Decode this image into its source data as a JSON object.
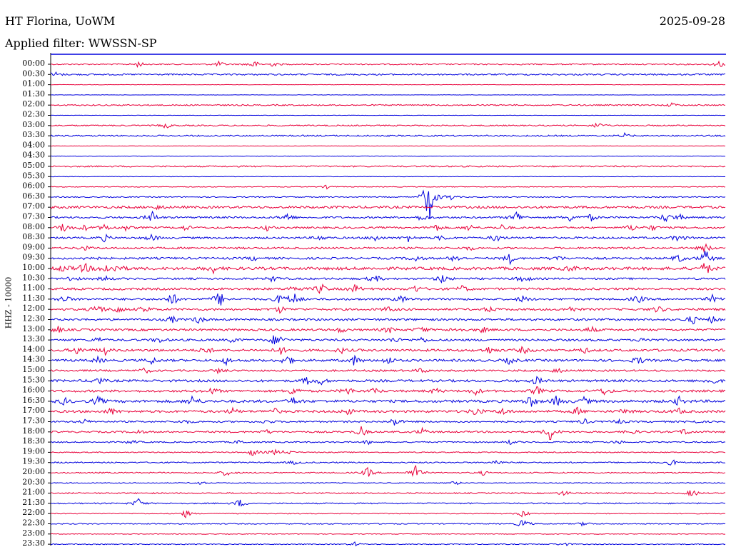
{
  "header": {
    "station": "HT Florina, UoWM",
    "date": "2025-09-28",
    "filter": "Applied filter: WWSSN-SP"
  },
  "colors": {
    "blue_trace": "#0000dd",
    "red_trace": "#e8003a",
    "axis": "#000000"
  },
  "chart_data": {
    "type": "line",
    "title": "HT Florina, UoWM",
    "subtitle": "Applied filter: WWSSN-SP",
    "ylabel": "HHZ - 10000",
    "xlabel": "",
    "grid": false,
    "row_interval_minutes": 30,
    "row_labels": [
      "00:00",
      "00:30",
      "01:00",
      "01:30",
      "02:00",
      "02:30",
      "03:00",
      "03:30",
      "04:00",
      "04:30",
      "05:00",
      "05:30",
      "06:00",
      "06:30",
      "07:00",
      "07:30",
      "08:00",
      "08:30",
      "09:00",
      "09:30",
      "10:00",
      "10:30",
      "11:00",
      "11:30",
      "12:00",
      "12:30",
      "13:00",
      "13:30",
      "14:00",
      "14:30",
      "15:00",
      "15:30",
      "16:00",
      "16:30",
      "17:00",
      "17:30",
      "18:00",
      "18:30",
      "19:00",
      "19:30",
      "20:00",
      "20:30",
      "21:00",
      "21:30",
      "22:00",
      "22:30",
      "23:00",
      "23:30"
    ],
    "trace_colors": [
      "#0000dd",
      "#e8003a"
    ],
    "series": [
      {
        "noise": 1.0,
        "events": [
          [
            0.13,
            4
          ],
          [
            0.25,
            4
          ],
          [
            0.3,
            6
          ],
          [
            0.33,
            3
          ],
          [
            0.99,
            5
          ]
        ]
      },
      {
        "noise": 1.2,
        "events": [
          [
            0.005,
            5
          ]
        ]
      },
      {
        "noise": 0.3,
        "events": []
      },
      {
        "noise": 0.3,
        "events": []
      },
      {
        "noise": 1.0,
        "events": [
          [
            0.92,
            3
          ]
        ]
      },
      {
        "noise": 0.3,
        "events": []
      },
      {
        "noise": 1.0,
        "events": [
          [
            0.17,
            4
          ],
          [
            0.81,
            5
          ]
        ]
      },
      {
        "noise": 1.1,
        "events": [
          [
            0.85,
            3
          ]
        ]
      },
      {
        "noise": 0.3,
        "events": []
      },
      {
        "noise": 0.4,
        "events": []
      },
      {
        "noise": 1.1,
        "events": []
      },
      {
        "noise": 0.4,
        "events": []
      },
      {
        "noise": 0.6,
        "events": [
          [
            0.41,
            3
          ]
        ]
      },
      {
        "noise": 0.8,
        "events": [
          [
            0.56,
            40
          ],
          [
            0.59,
            6
          ]
        ]
      },
      {
        "noise": 1.8,
        "events": [
          [
            0.16,
            3
          ]
        ]
      },
      {
        "noise": 1.4,
        "events": [
          [
            0.15,
            9
          ],
          [
            0.35,
            7
          ],
          [
            0.55,
            5
          ],
          [
            0.69,
            10
          ],
          [
            0.77,
            6
          ],
          [
            0.8,
            5
          ],
          [
            0.91,
            7
          ],
          [
            0.93,
            5
          ]
        ]
      },
      {
        "noise": 1.4,
        "events": [
          [
            0.02,
            8
          ],
          [
            0.05,
            4
          ],
          [
            0.08,
            5
          ],
          [
            0.11,
            4
          ],
          [
            0.2,
            4
          ],
          [
            0.32,
            4
          ],
          [
            0.57,
            6
          ],
          [
            0.62,
            5
          ],
          [
            0.67,
            5
          ],
          [
            0.86,
            5
          ],
          [
            0.89,
            4
          ]
        ]
      },
      {
        "noise": 1.5,
        "events": [
          [
            0.08,
            5
          ],
          [
            0.15,
            5
          ],
          [
            0.4,
            4
          ],
          [
            0.48,
            5
          ],
          [
            0.53,
            5
          ],
          [
            0.58,
            4
          ],
          [
            0.66,
            6
          ],
          [
            0.93,
            6
          ]
        ]
      },
      {
        "noise": 1.5,
        "events": [
          [
            0.05,
            3
          ],
          [
            0.62,
            3
          ],
          [
            0.97,
            6
          ]
        ]
      },
      {
        "noise": 1.6,
        "events": [
          [
            0.06,
            5
          ],
          [
            0.3,
            3
          ],
          [
            0.54,
            5
          ],
          [
            0.6,
            6
          ],
          [
            0.68,
            7
          ],
          [
            0.75,
            4
          ],
          [
            0.93,
            6
          ],
          [
            0.97,
            12
          ]
        ]
      },
      {
        "noise": 2.2,
        "events": [
          [
            0.02,
            6
          ],
          [
            0.05,
            8
          ],
          [
            0.08,
            7
          ],
          [
            0.1,
            6
          ],
          [
            0.24,
            6
          ],
          [
            0.77,
            4
          ],
          [
            0.97,
            10
          ]
        ]
      },
      {
        "noise": 1.5,
        "events": [
          [
            0.03,
            4
          ],
          [
            0.08,
            4
          ],
          [
            0.33,
            5
          ],
          [
            0.48,
            6
          ],
          [
            0.58,
            7
          ],
          [
            0.7,
            7
          ]
        ]
      },
      {
        "noise": 1.7,
        "events": [
          [
            0.36,
            5
          ],
          [
            0.4,
            8
          ],
          [
            0.45,
            6
          ],
          [
            0.54,
            5
          ],
          [
            0.61,
            5
          ]
        ]
      },
      {
        "noise": 1.6,
        "events": [
          [
            0.02,
            6
          ],
          [
            0.18,
            10
          ],
          [
            0.25,
            12
          ],
          [
            0.34,
            8
          ],
          [
            0.36,
            10
          ],
          [
            0.52,
            5
          ],
          [
            0.7,
            5
          ],
          [
            0.87,
            6
          ],
          [
            0.98,
            5
          ]
        ]
      },
      {
        "noise": 1.6,
        "events": [
          [
            0.07,
            9
          ],
          [
            0.1,
            6
          ],
          [
            0.14,
            6
          ],
          [
            0.34,
            5
          ],
          [
            0.5,
            4
          ],
          [
            0.65,
            4
          ],
          [
            0.77,
            4
          ],
          [
            0.9,
            5
          ]
        ]
      },
      {
        "noise": 1.6,
        "events": [
          [
            0.18,
            5
          ],
          [
            0.22,
            6
          ],
          [
            0.95,
            7
          ],
          [
            0.98,
            5
          ]
        ]
      },
      {
        "noise": 1.6,
        "events": [
          [
            0.01,
            5
          ],
          [
            0.43,
            4
          ],
          [
            0.5,
            5
          ],
          [
            0.55,
            5
          ],
          [
            0.6,
            4
          ],
          [
            0.64,
            4
          ],
          [
            0.8,
            5
          ]
        ]
      },
      {
        "noise": 1.6,
        "events": [
          [
            0.07,
            4
          ],
          [
            0.16,
            4
          ],
          [
            0.27,
            4
          ],
          [
            0.34,
            5
          ],
          [
            0.33,
            5
          ],
          [
            0.51,
            4
          ],
          [
            0.55,
            4
          ],
          [
            0.88,
            5
          ]
        ]
      },
      {
        "noise": 1.8,
        "events": [
          [
            0.04,
            6
          ],
          [
            0.08,
            6
          ],
          [
            0.23,
            6
          ],
          [
            0.34,
            6
          ],
          [
            0.43,
            4
          ],
          [
            0.65,
            5
          ],
          [
            0.7,
            5
          ],
          [
            0.79,
            4
          ]
        ]
      },
      {
        "noise": 1.8,
        "events": [
          [
            0.07,
            4
          ],
          [
            0.15,
            5
          ],
          [
            0.26,
            5
          ],
          [
            0.35,
            8
          ],
          [
            0.45,
            7
          ],
          [
            0.5,
            6
          ],
          [
            0.68,
            5
          ],
          [
            0.87,
            6
          ]
        ]
      },
      {
        "noise": 1.4,
        "events": [
          [
            0.14,
            4
          ],
          [
            0.25,
            4
          ],
          [
            0.55,
            4
          ],
          [
            0.75,
            4
          ]
        ]
      },
      {
        "noise": 1.8,
        "events": [
          [
            0.07,
            6
          ],
          [
            0.38,
            5
          ],
          [
            0.4,
            5
          ],
          [
            0.72,
            6
          ],
          [
            0.98,
            6
          ]
        ]
      },
      {
        "noise": 1.7,
        "events": [
          [
            0.24,
            5
          ],
          [
            0.36,
            8
          ],
          [
            0.44,
            6
          ],
          [
            0.48,
            4
          ],
          [
            0.57,
            4
          ],
          [
            0.63,
            5
          ],
          [
            0.72,
            6
          ],
          [
            0.82,
            5
          ]
        ]
      },
      {
        "noise": 2.0,
        "events": [
          [
            0.02,
            5
          ],
          [
            0.07,
            6
          ],
          [
            0.21,
            8
          ],
          [
            0.36,
            5
          ],
          [
            0.71,
            9
          ],
          [
            0.75,
            8
          ],
          [
            0.79,
            5
          ],
          [
            0.93,
            6
          ]
        ]
      },
      {
        "noise": 1.8,
        "events": [
          [
            0.09,
            5
          ],
          [
            0.27,
            4
          ],
          [
            0.33,
            5
          ],
          [
            0.44,
            5
          ],
          [
            0.63,
            7
          ],
          [
            0.67,
            5
          ],
          [
            0.78,
            5
          ],
          [
            0.85,
            4
          ],
          [
            0.93,
            4
          ]
        ]
      },
      {
        "noise": 1.3,
        "events": [
          [
            0.05,
            3
          ],
          [
            0.2,
            3
          ],
          [
            0.32,
            3
          ],
          [
            0.51,
            7
          ],
          [
            0.79,
            4
          ],
          [
            0.84,
            4
          ],
          [
            0.95,
            3
          ]
        ]
      },
      {
        "noise": 1.3,
        "events": [
          [
            0.13,
            3
          ],
          [
            0.32,
            3
          ],
          [
            0.46,
            7
          ],
          [
            0.55,
            5
          ],
          [
            0.74,
            13
          ],
          [
            0.86,
            4
          ],
          [
            0.94,
            5
          ]
        ]
      },
      {
        "noise": 1.0,
        "events": [
          [
            0.12,
            3
          ],
          [
            0.28,
            3
          ],
          [
            0.47,
            3
          ],
          [
            0.68,
            3
          ],
          [
            0.84,
            3
          ]
        ]
      },
      {
        "noise": 0.8,
        "events": [
          [
            0.3,
            6
          ],
          [
            0.33,
            5
          ],
          [
            0.35,
            4
          ]
        ]
      },
      {
        "noise": 1.0,
        "events": [
          [
            0.36,
            3
          ],
          [
            0.66,
            4
          ],
          [
            0.92,
            5
          ]
        ]
      },
      {
        "noise": 1.0,
        "events": [
          [
            0.26,
            5
          ],
          [
            0.47,
            8
          ],
          [
            0.54,
            12
          ],
          [
            0.64,
            3
          ]
        ]
      },
      {
        "noise": 0.7,
        "events": [
          [
            0.22,
            3
          ],
          [
            0.6,
            3
          ]
        ]
      },
      {
        "noise": 1.0,
        "events": [
          [
            0.76,
            4
          ],
          [
            0.95,
            6
          ]
        ]
      },
      {
        "noise": 1.0,
        "events": [
          [
            0.13,
            7
          ],
          [
            0.28,
            6
          ]
        ]
      },
      {
        "noise": 0.7,
        "events": [
          [
            0.2,
            6
          ],
          [
            0.7,
            6
          ]
        ]
      },
      {
        "noise": 0.8,
        "events": [
          [
            0.7,
            8
          ],
          [
            0.79,
            4
          ]
        ]
      },
      {
        "noise": 0.5,
        "events": []
      },
      {
        "noise": 0.7,
        "events": [
          [
            0.45,
            3
          ],
          [
            0.76,
            3
          ]
        ]
      }
    ]
  }
}
